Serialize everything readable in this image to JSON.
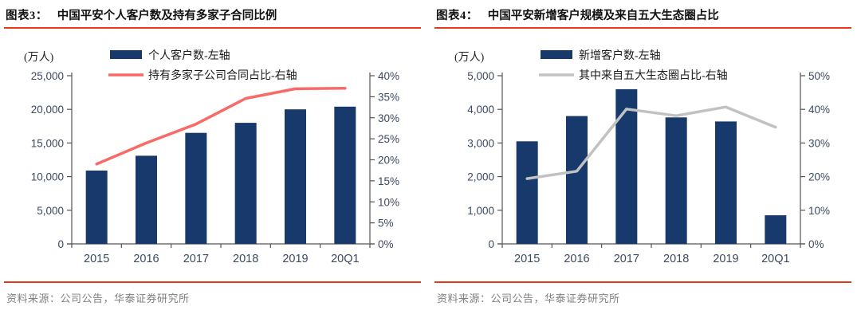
{
  "chart_data": [
    {
      "type": "bar+line",
      "figure_label": "图表3：",
      "title": "中国平安个人客户数及持有多家子合同比例",
      "unit_label": "(万人)",
      "categories": [
        "2015",
        "2016",
        "2017",
        "2018",
        "2019",
        "20Q1"
      ],
      "series": [
        {
          "name": "个人客户数-左轴",
          "type": "bar",
          "axis": "left",
          "color": "#17396B",
          "values": [
            10900,
            13100,
            16500,
            18000,
            20000,
            20400
          ]
        },
        {
          "name": "持有多家子公司合同占比-右轴",
          "type": "line",
          "axis": "right",
          "color": "#F96A66",
          "values": [
            19.0,
            24.0,
            28.5,
            34.6,
            36.9,
            37.0
          ]
        }
      ],
      "left_axis": {
        "min": 0,
        "max": 25000,
        "step": 5000,
        "tick_labels": [
          "0",
          "5,000",
          "10,000",
          "15,000",
          "20,000",
          "25,000"
        ]
      },
      "right_axis": {
        "min": 0,
        "max": 40,
        "step": 5,
        "tick_labels": [
          "0%",
          "5%",
          "10%",
          "15%",
          "20%",
          "25%",
          "30%",
          "35%",
          "40%"
        ]
      },
      "legend_position": "top",
      "grid": "off",
      "source": "资料来源：公司公告，华泰证券研究所"
    },
    {
      "type": "bar+line",
      "figure_label": "图表4：",
      "title": "中国平安新增客户规模及来自五大生态圈占比",
      "unit_label": "(万人)",
      "categories": [
        "2015",
        "2016",
        "2017",
        "2018",
        "2019",
        "20Q1"
      ],
      "series": [
        {
          "name": "新增客户数-左轴",
          "type": "bar",
          "axis": "left",
          "color": "#17396B",
          "values": [
            3050,
            3800,
            4600,
            3760,
            3640,
            850
          ]
        },
        {
          "name": "其中来自五大生态圈占比-右轴",
          "type": "line",
          "axis": "right",
          "color": "#C2C2C2",
          "values": [
            19.4,
            21.6,
            40.1,
            38.1,
            40.7,
            34.7
          ]
        }
      ],
      "left_axis": {
        "min": 0,
        "max": 5000,
        "step": 1000,
        "tick_labels": [
          "0",
          "1,000",
          "2,000",
          "3,000",
          "4,000",
          "5,000"
        ]
      },
      "right_axis": {
        "min": 0,
        "max": 50,
        "step": 10,
        "tick_labels": [
          "0%",
          "10%",
          "20%",
          "30%",
          "40%",
          "50%"
        ]
      },
      "legend_position": "top",
      "grid": "off",
      "source": "资料来源：公司公告，华泰证券研究所"
    }
  ],
  "style": {
    "accent_red": "#e43a17",
    "bar_navy": "#17396B",
    "tick_label_color": "#3c4961",
    "axis_line_color": "#555555",
    "source_text_color": "#808080"
  }
}
